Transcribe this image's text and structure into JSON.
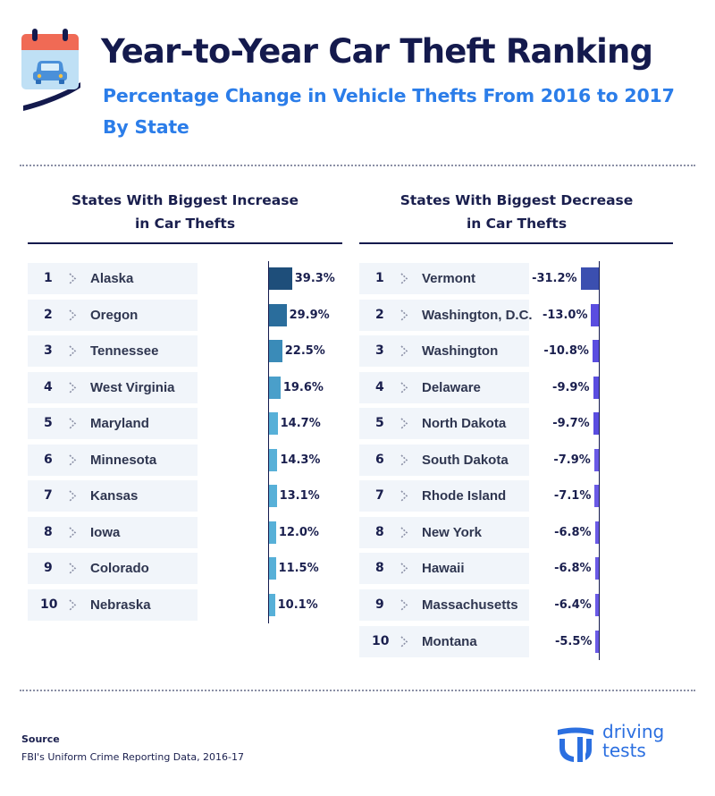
{
  "header": {
    "title": "Year-to-Year Car Theft Ranking",
    "subtitle_line1": "Percentage Change in Vehicle Thefts From 2016 to 2017",
    "subtitle_line2": "By State",
    "icon": "calendar-car-icon"
  },
  "increase": {
    "heading_line1": "States With Biggest Increase",
    "heading_line2": "in Car Thefts"
  },
  "decrease": {
    "heading_line1": "States With Biggest Decrease",
    "heading_line2": "in Car Thefts"
  },
  "chart_data": [
    {
      "type": "bar",
      "title": "States With Biggest Increase in Car Thefts",
      "orientation": "horizontal",
      "ranks": [
        "1",
        "2",
        "3",
        "4",
        "5",
        "6",
        "7",
        "8",
        "9",
        "10"
      ],
      "categories": [
        "Alaska",
        "Oregon",
        "Tennessee",
        "West Virginia",
        "Maryland",
        "Minnesota",
        "Kansas",
        "Iowa",
        "Colorado",
        "Nebraska"
      ],
      "values": [
        39.3,
        29.9,
        22.5,
        19.6,
        14.7,
        14.3,
        13.1,
        12.0,
        11.5,
        10.1
      ],
      "labels": [
        "39.3%",
        "29.9%",
        "22.5%",
        "19.6%",
        "14.7%",
        "14.3%",
        "13.1%",
        "12.0%",
        "11.5%",
        "10.1%"
      ],
      "colors": [
        "#1e4e7a",
        "#2a6d9c",
        "#3a8bb8",
        "#4a9fca",
        "#57b0d8",
        "#57b0d8",
        "#57b0d8",
        "#57b0d8",
        "#57b0d8",
        "#57b0d8"
      ]
    },
    {
      "type": "bar",
      "title": "States With Biggest Decrease in Car Thefts",
      "orientation": "horizontal",
      "ranks": [
        "1",
        "2",
        "3",
        "4",
        "5",
        "6",
        "7",
        "8",
        "8",
        "9",
        "10"
      ],
      "categories": [
        "Vermont",
        "Washington, D.C.",
        "Washington",
        "Delaware",
        "North Dakota",
        "South Dakota",
        "Rhode Island",
        "New York",
        "Hawaii",
        "Massachusetts",
        "Montana"
      ],
      "values": [
        -31.2,
        -13.0,
        -10.8,
        -9.9,
        -9.7,
        -7.9,
        -7.1,
        -6.8,
        -6.8,
        -6.4,
        -5.5
      ],
      "labels": [
        "-31.2%",
        "-13.0%",
        "-10.8%",
        "-9.9%",
        "-9.7%",
        "-7.9%",
        "-7.1%",
        "-6.8%",
        "-6.8%",
        "-6.4%",
        "-5.5%"
      ],
      "colors": [
        "#3b4fb0",
        "#5a4de0",
        "#5a4de0",
        "#5a4de0",
        "#5a4de0",
        "#6a5ae6",
        "#6a5ae6",
        "#6a5ae6",
        "#6a5ae6",
        "#6a5ae6",
        "#6a5ae6"
      ]
    }
  ],
  "footer": {
    "source_label": "Source",
    "source_text": "FBI's Uniform Crime Reporting Data, 2016-17",
    "logo_line1": "driving",
    "logo_line2": "tests",
    "logo_color": "#2b6fe0"
  }
}
